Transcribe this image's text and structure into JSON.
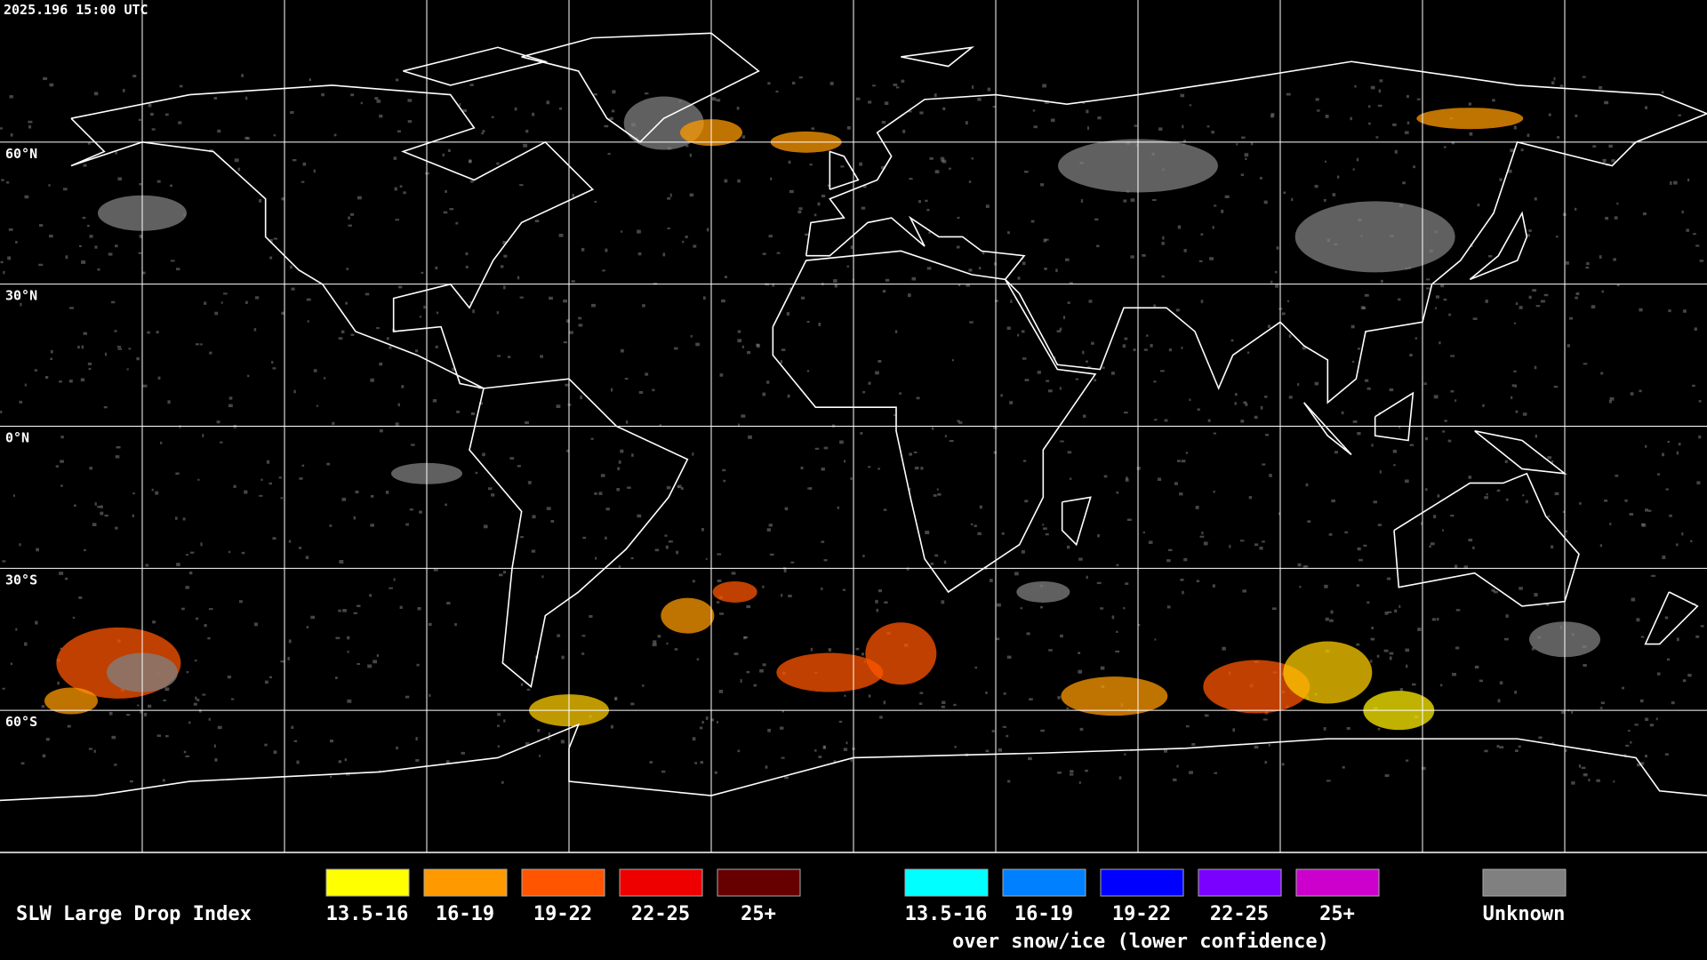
{
  "timestamp": "2025.196 15:00 UTC",
  "latitude_labels": [
    "60°N",
    "30°N",
    "0°N",
    "30°S",
    "60°S"
  ],
  "legend": {
    "title": "SLW Large Drop Index",
    "items": [
      {
        "label": "13.5-16",
        "color": "#ffff00"
      },
      {
        "label": "16-19",
        "color": "#ff9900"
      },
      {
        "label": "19-22",
        "color": "#ff5500"
      },
      {
        "label": "22-25",
        "color": "#ee0000"
      },
      {
        "label": "25+",
        "color": "#660000"
      }
    ],
    "snow_items": [
      {
        "label": "13.5-16",
        "color": "#00ffff"
      },
      {
        "label": "16-19",
        "color": "#0080ff"
      },
      {
        "label": "19-22",
        "color": "#0000ff"
      },
      {
        "label": "22-25",
        "color": "#7a00ff"
      },
      {
        "label": "25+",
        "color": "#cc00cc"
      }
    ],
    "snow_caption": "over snow/ice (lower confidence)",
    "unknown": {
      "label": "Unknown",
      "color": "#808080"
    }
  }
}
